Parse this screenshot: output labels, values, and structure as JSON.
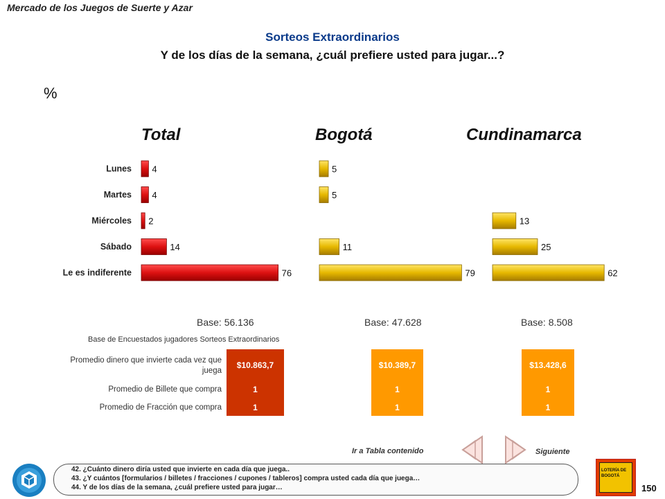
{
  "header": {
    "brand": "Mercado de los Juegos de Suerte y Azar",
    "title": "Sorteos Extraordinarios",
    "subtitle": "Y de los días de la semana, ¿cuál prefiere usted para jugar...?",
    "unit": "%"
  },
  "colors": {
    "total_bar": "#dd1111",
    "region_bar": "#e6b800",
    "cell_total": "#cc3300",
    "cell_region": "#ff9900"
  },
  "chart_data": [
    {
      "type": "bar",
      "title": "Total",
      "categories": [
        "Lunes",
        "Martes",
        "Miércoles",
        "Sábado",
        "Le es indiferente"
      ],
      "values": [
        4,
        4,
        2,
        14,
        76
      ]
    },
    {
      "type": "bar",
      "title": "Bogotá",
      "categories": [
        "Lunes",
        "Martes",
        "Miércoles",
        "Sábado",
        "Le es indiferente"
      ],
      "values": [
        5,
        5,
        null,
        11,
        79
      ]
    },
    {
      "type": "bar",
      "title": "Cundinamarca",
      "categories": [
        "Lunes",
        "Martes",
        "Miércoles",
        "Sábado",
        "Le es indiferente"
      ],
      "values": [
        null,
        null,
        13,
        25,
        62
      ]
    }
  ],
  "bases": [
    "Base: 56.136",
    "Base: 47.628",
    "Base: 8.508"
  ],
  "table": {
    "note": "Base de Encuestados jugadores Sorteos Extraordinarios",
    "rows": [
      {
        "label": "Promedio dinero que invierte cada vez que juega",
        "values": [
          "$10.863,7",
          "$10.389,7",
          "$13.428,6"
        ]
      },
      {
        "label": "Promedio de Billete que compra",
        "values": [
          "1",
          "1",
          "1"
        ]
      },
      {
        "label": "Promedio de Fracción que compra",
        "values": [
          "1",
          "1",
          "1"
        ]
      }
    ]
  },
  "nav": {
    "prev_label": "Ir a Tabla contenido",
    "next_label": "Siguiente",
    "prev_icon": "arrow-left-icon",
    "next_icon": "arrow-right-icon"
  },
  "footer": {
    "lines": [
      "42. ¿Cuánto dinero diría usted que invierte en cada día que juega..",
      "43. ¿Y cuántos [formularios / billetes / fracciones / cupones / tableros] compra usted cada día que juega…",
      "44. Y de los días de la semana, ¿cuál prefiere usted para jugar…"
    ],
    "logo_left_icon": "hexagon-cube-logo-icon",
    "logo_right_text": "LOTERÍA DE BOGOTÁ",
    "page": "150"
  }
}
